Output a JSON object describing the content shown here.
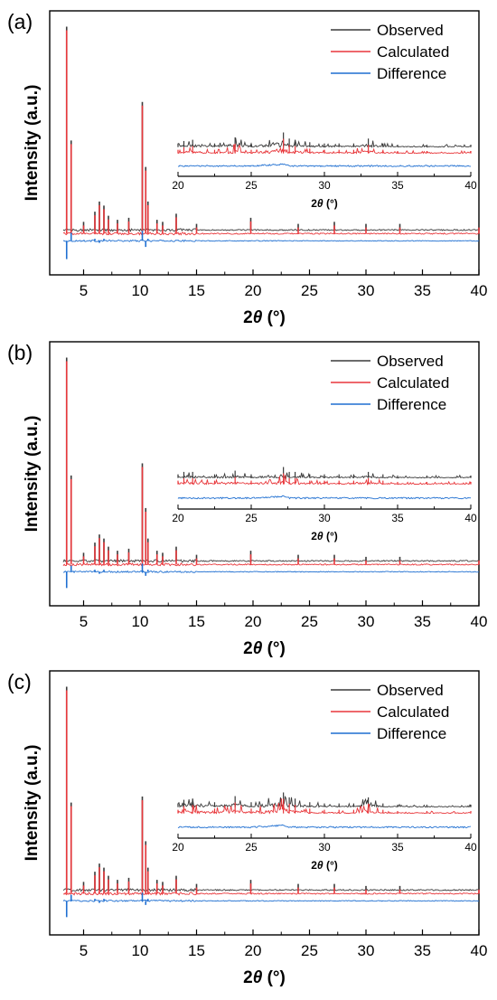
{
  "colors": {
    "observed": "#3a3a3a",
    "calculated": "#e8373b",
    "difference": "#1f6fd1",
    "axis": "#000000"
  },
  "chart_data": [
    {
      "type": "line",
      "panel_label": "(a)",
      "xlabel_prefix": "2",
      "xlabel_theta": "θ",
      "xlabel_unit": " (°)",
      "ylabel": "Intensity (a.u.)",
      "xlim": [
        2,
        40
      ],
      "xticks": [
        "5",
        "10",
        "15",
        "20",
        "25",
        "30",
        "35",
        "40"
      ],
      "legend": [
        "Observed",
        "Calculated",
        "Difference"
      ],
      "legend_position": "top-right",
      "x": [
        3.5,
        3.9,
        5.0,
        6.0,
        6.4,
        6.8,
        7.2,
        8.0,
        9.0,
        10.2,
        10.5,
        10.7,
        11.5,
        12.0,
        13.2,
        15.0,
        19.8,
        24.0,
        27.2,
        30.0,
        33.0,
        40.0
      ],
      "series": [
        {
          "name": "Observed",
          "values": [
            100,
            44,
            4,
            9,
            14,
            12,
            7,
            5,
            6,
            63,
            31,
            14,
            5,
            4,
            8,
            3,
            6,
            3,
            4,
            3,
            3,
            3
          ]
        },
        {
          "name": "Calculated",
          "values": [
            100,
            44,
            4,
            9,
            14,
            12,
            7,
            5,
            6,
            63,
            31,
            14,
            5,
            4,
            8,
            3,
            6,
            3,
            4,
            3,
            3,
            3
          ]
        },
        {
          "name": "Difference",
          "values": [
            -9,
            4,
            0,
            1,
            -1,
            1,
            0,
            0,
            0,
            5,
            -3,
            1,
            0,
            0,
            0,
            0,
            0,
            0,
            0,
            0,
            0,
            0
          ]
        }
      ],
      "inset": {
        "xlim": [
          20,
          40
        ],
        "xticks": [
          "20",
          "25",
          "30",
          "35",
          "40"
        ],
        "xlabel_prefix": "2",
        "xlabel_theta": "θ",
        "xlabel_unit": " (°)",
        "x": [
          20,
          20.4,
          21.0,
          22.5,
          23.9,
          25.0,
          27.2,
          27.6,
          28.0,
          29.0,
          30.0,
          31.0,
          32.0,
          33.0,
          34.0,
          35.0,
          37.0,
          40.0
        ],
        "series": [
          {
            "name": "Observed",
            "values": [
              3,
              5,
              6,
              3,
              8,
              3,
              12,
              7,
              6,
              4,
              3,
              3,
              3,
              7,
              3,
              2,
              2,
              2
            ]
          },
          {
            "name": "Calculated",
            "values": [
              3,
              5,
              6,
              3,
              8,
              3,
              12,
              7,
              6,
              4,
              3,
              3,
              3,
              7,
              3,
              2,
              2,
              2
            ]
          },
          {
            "name": "Difference",
            "values": [
              0,
              0,
              0,
              0,
              0,
              0,
              1,
              0,
              0,
              0,
              0,
              0,
              0,
              0,
              0,
              0,
              0,
              0
            ]
          }
        ]
      }
    },
    {
      "type": "line",
      "panel_label": "(b)",
      "xlabel_prefix": "2",
      "xlabel_theta": "θ",
      "xlabel_unit": " (°)",
      "ylabel": "Intensity (a.u.)",
      "xlim": [
        2,
        40
      ],
      "xticks": [
        "5",
        "10",
        "15",
        "20",
        "25",
        "30",
        "35",
        "40"
      ],
      "legend": [
        "Observed",
        "Calculated",
        "Difference"
      ],
      "legend_position": "top-right",
      "x": [
        3.5,
        3.9,
        5.0,
        6.0,
        6.4,
        6.8,
        7.2,
        8.0,
        9.0,
        10.2,
        10.5,
        10.7,
        11.5,
        12.0,
        13.2,
        15.0,
        19.8,
        24.0,
        27.2,
        30.0,
        33.0,
        40.0
      ],
      "series": [
        {
          "name": "Observed",
          "values": [
            100,
            42,
            4,
            9,
            13,
            11,
            7,
            5,
            6,
            48,
            26,
            11,
            5,
            4,
            7,
            3,
            5,
            3,
            3,
            2,
            2,
            2
          ]
        },
        {
          "name": "Calculated",
          "values": [
            100,
            42,
            4,
            9,
            13,
            11,
            7,
            5,
            6,
            48,
            26,
            11,
            5,
            4,
            7,
            3,
            5,
            3,
            3,
            2,
            2,
            2
          ]
        },
        {
          "name": "Difference",
          "values": [
            -8,
            3,
            0,
            1,
            -1,
            1,
            0,
            0,
            0,
            4,
            -2,
            1,
            0,
            0,
            0,
            0,
            0,
            0,
            0,
            0,
            0,
            0
          ]
        }
      ],
      "inset": {
        "xlim": [
          20,
          40
        ],
        "xticks": [
          "20",
          "25",
          "30",
          "35",
          "40"
        ],
        "xlabel_prefix": "2",
        "xlabel_theta": "θ",
        "xlabel_unit": " (°)",
        "x": [
          20,
          20.4,
          21.0,
          22.5,
          23.9,
          25.0,
          27.2,
          27.6,
          28.0,
          29.0,
          30.0,
          31.0,
          32.0,
          33.0,
          34.0,
          35.0,
          37.0,
          40.0
        ],
        "series": [
          {
            "name": "Observed",
            "values": [
              3,
              5,
              5,
              3,
              6,
              3,
              9,
              5,
              5,
              3,
              3,
              3,
              3,
              5,
              3,
              2,
              2,
              2
            ]
          },
          {
            "name": "Calculated",
            "values": [
              3,
              5,
              5,
              3,
              6,
              3,
              9,
              5,
              5,
              3,
              3,
              3,
              3,
              5,
              3,
              2,
              2,
              2
            ]
          },
          {
            "name": "Difference",
            "values": [
              0,
              0,
              0,
              0,
              0,
              0,
              1,
              0,
              0,
              0,
              0,
              0,
              0,
              0,
              0,
              0,
              0,
              0
            ]
          }
        ]
      }
    },
    {
      "type": "line",
      "panel_label": "(c)",
      "xlabel_prefix": "2",
      "xlabel_theta": "θ",
      "xlabel_unit": " (°)",
      "ylabel": "Intensity (a.u.)",
      "xlim": [
        2,
        40
      ],
      "xticks": [
        "5",
        "10",
        "15",
        "20",
        "25",
        "30",
        "35",
        "40"
      ],
      "legend": [
        "Observed",
        "Calculated",
        "Difference"
      ],
      "legend_position": "top-right",
      "x": [
        3.5,
        3.9,
        5.0,
        6.0,
        6.4,
        6.8,
        7.2,
        8.0,
        9.0,
        10.2,
        10.5,
        10.7,
        11.5,
        12.0,
        13.2,
        15.0,
        19.8,
        24.0,
        27.2,
        30.0,
        33.0,
        40.0
      ],
      "series": [
        {
          "name": "Observed",
          "values": [
            100,
            43,
            4,
            9,
            13,
            11,
            7,
            5,
            6,
            46,
            24,
            11,
            5,
            4,
            7,
            3,
            5,
            3,
            3,
            2,
            2,
            2
          ]
        },
        {
          "name": "Calculated",
          "values": [
            100,
            43,
            4,
            9,
            13,
            11,
            7,
            5,
            6,
            46,
            24,
            11,
            5,
            4,
            7,
            3,
            5,
            3,
            3,
            2,
            2,
            2
          ]
        },
        {
          "name": "Difference",
          "values": [
            -8,
            3,
            0,
            1,
            -1,
            1,
            0,
            0,
            0,
            4,
            -2,
            1,
            0,
            0,
            0,
            0,
            0,
            0,
            0,
            0,
            0,
            0
          ]
        }
      ],
      "inset": {
        "xlim": [
          20,
          40
        ],
        "xticks": [
          "20",
          "25",
          "30",
          "35",
          "40"
        ],
        "xlabel_prefix": "2",
        "xlabel_theta": "θ",
        "xlabel_unit": " (°)",
        "x": [
          20,
          20.4,
          21.0,
          22.5,
          23.9,
          25.0,
          27.2,
          27.6,
          28.0,
          29.0,
          30.0,
          31.0,
          32.0,
          33.0,
          34.0,
          35.0,
          37.0,
          40.0
        ],
        "series": [
          {
            "name": "Observed",
            "values": [
              3,
              6,
              7,
              4,
              9,
              4,
              12,
              8,
              7,
              4,
              3,
              3,
              3,
              8,
              3,
              2,
              2,
              2
            ]
          },
          {
            "name": "Calculated",
            "values": [
              3,
              6,
              7,
              4,
              9,
              4,
              12,
              8,
              7,
              4,
              3,
              3,
              3,
              8,
              3,
              2,
              2,
              2
            ]
          },
          {
            "name": "Difference",
            "values": [
              0,
              0,
              0,
              0,
              0,
              0,
              1,
              0,
              0,
              0,
              0,
              0,
              0,
              0,
              0,
              0,
              0,
              0
            ]
          }
        ]
      }
    }
  ]
}
